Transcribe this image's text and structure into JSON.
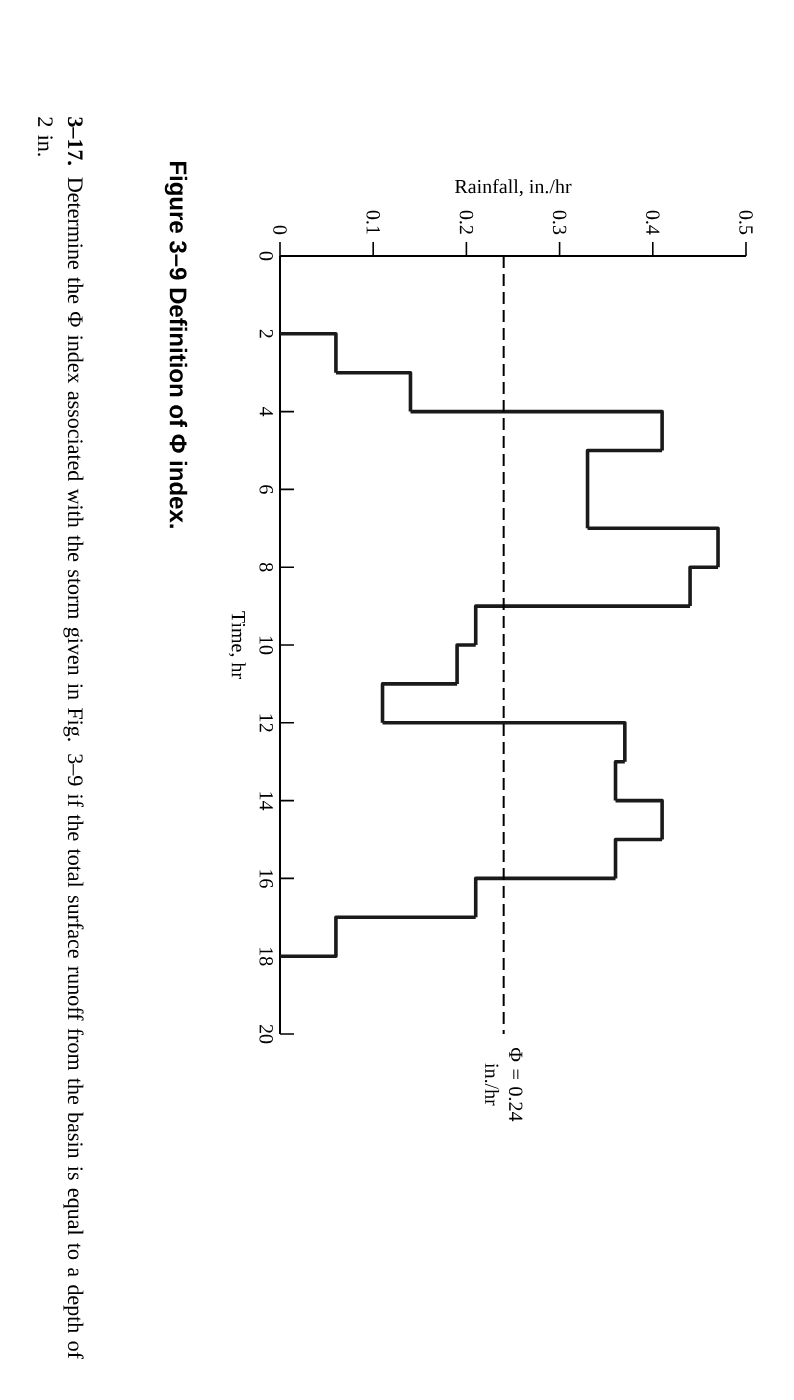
{
  "chart_data": {
    "type": "histogram",
    "orientation": "horizontal",
    "title": "Figure 3–9 Definition of Φ index.",
    "xlabel": "Rainfall, in./hr",
    "ylabel": "Time, hr",
    "bins": [
      2,
      3,
      4,
      5,
      7,
      8,
      9,
      10,
      11,
      12,
      13,
      14,
      15,
      16,
      17,
      18
    ],
    "values": [
      0.06,
      0.14,
      0.41,
      0.33,
      0.47,
      0.44,
      0.21,
      0.19,
      0.11,
      0.37,
      0.36,
      0.41,
      0.36,
      0.21,
      0.06
    ],
    "color": "#1a1a1a",
    "xlim": [
      0,
      0.5
    ],
    "ylim": [
      20,
      0
    ],
    "xticks": [
      0,
      0.1,
      0.2,
      0.3,
      0.4,
      0.5
    ],
    "yticks": [
      0,
      2,
      4,
      6,
      8,
      10,
      12,
      14,
      16,
      18,
      20
    ],
    "ref_lines": [
      {
        "axis": "x",
        "value": 0.24,
        "label": "Φ = 0.24 in./hr",
        "line_style": "dashed"
      }
    ],
    "annotations": [
      "**3–17.** Determine the Φ index associated with the storm given in Fig. 3–9 if the total surface runoff from the basin is equal to a depth of 2 in."
    ]
  }
}
